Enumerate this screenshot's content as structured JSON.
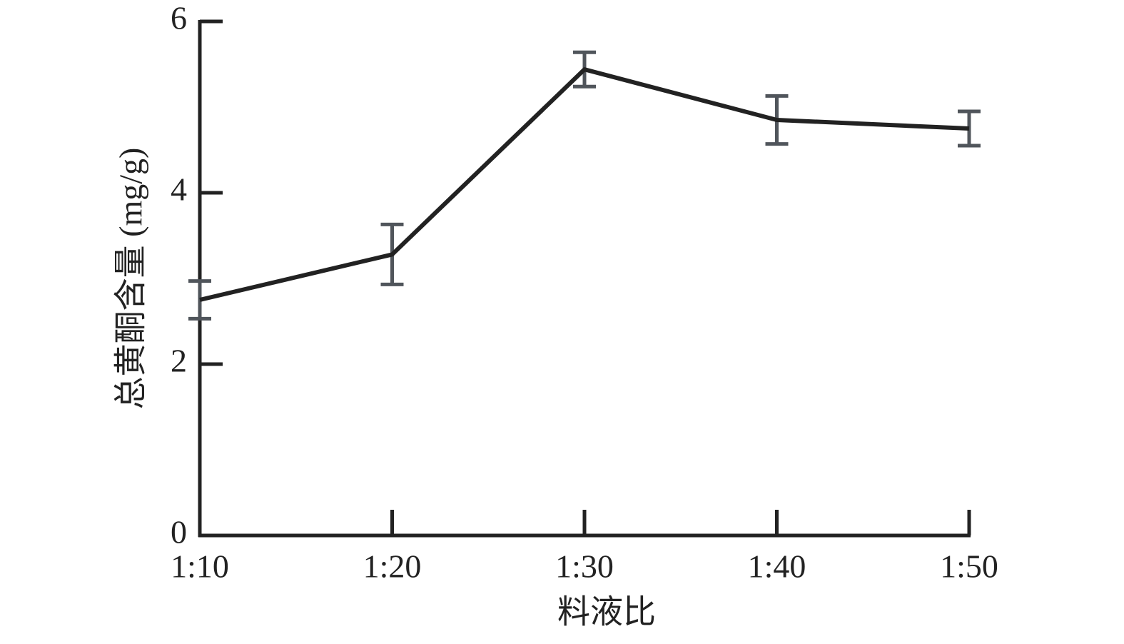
{
  "chart_data": {
    "type": "line",
    "x_label": "料液比",
    "y_label": "总黄酮含量 (mg/g)",
    "categories": [
      "1:10",
      "1:20",
      "1:30",
      "1:40",
      "1:50"
    ],
    "series": [
      {
        "color": "#222222",
        "error_color": "#50555b",
        "values": [
          2.75,
          3.28,
          5.44,
          4.85,
          4.75
        ],
        "errors": [
          0.22,
          0.35,
          0.2,
          0.28,
          0.2
        ]
      }
    ],
    "ylim": [
      0,
      6
    ],
    "yticks": [
      0,
      2,
      4,
      6
    ],
    "grid": false
  }
}
